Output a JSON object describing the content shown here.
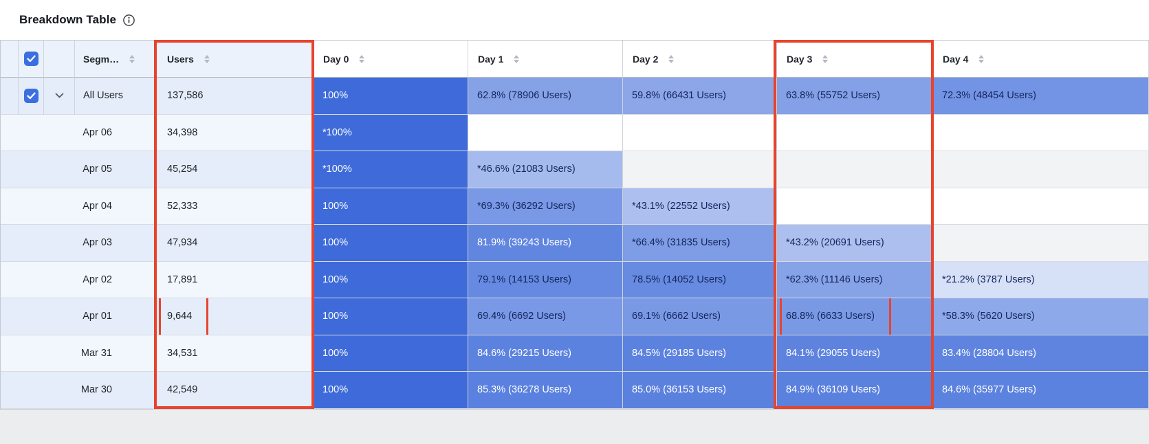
{
  "page": {
    "title": "Breakdown Table"
  },
  "colors": {
    "accent_blue": "#3E6BD9",
    "highlight_red": "#E8432D",
    "cell_text_dark": "#14265C",
    "cell_text_light": "#FFFFFF",
    "row_band_dark": "#E4EDF9",
    "row_band_light": "#F2F7FD",
    "header_band": "#ECF2FB",
    "empty_stripe": "#F2F3F5",
    "checkbox_blue": "#3B6FE0"
  },
  "table": {
    "segment_column": {
      "label": "Segm…",
      "sortable": true
    },
    "users_column": {
      "label": "Users",
      "sortable": true,
      "highlighted": true
    },
    "day_columns": [
      {
        "label": "Day 0",
        "sortable": true
      },
      {
        "label": "Day 1",
        "sortable": true
      },
      {
        "label": "Day 2",
        "sortable": true
      },
      {
        "label": "Day 3",
        "sortable": true,
        "highlighted": true
      },
      {
        "label": "Day 4",
        "sortable": true
      }
    ],
    "select_all_checked": true,
    "rows": [
      {
        "type": "segment",
        "segment": "All Users",
        "selected": true,
        "expandable": true,
        "users": "137,586",
        "cells": [
          {
            "label": "100%",
            "pct": 100
          },
          {
            "label": "62.8% (78906 Users)",
            "pct": 62.8
          },
          {
            "label": "59.8% (66431 Users)",
            "pct": 59.8
          },
          {
            "label": "63.8% (55752 Users)",
            "pct": 63.8
          },
          {
            "label": "72.3% (48454 Users)",
            "pct": 72.3
          }
        ]
      },
      {
        "type": "date",
        "segment": "Apr 06",
        "users": "34,398",
        "cells": [
          {
            "label": "*100%",
            "pct": 100
          },
          null,
          null,
          null,
          null
        ]
      },
      {
        "type": "date",
        "segment": "Apr 05",
        "users": "45,254",
        "cells": [
          {
            "label": "*100%",
            "pct": 100
          },
          {
            "label": "*46.6% (21083 Users)",
            "pct": 46.6
          },
          null,
          null,
          null
        ]
      },
      {
        "type": "date",
        "segment": "Apr 04",
        "users": "52,333",
        "cells": [
          {
            "label": "100%",
            "pct": 100
          },
          {
            "label": "*69.3% (36292 Users)",
            "pct": 69.3
          },
          {
            "label": "*43.1% (22552 Users)",
            "pct": 43.1
          },
          null,
          null
        ]
      },
      {
        "type": "date",
        "segment": "Apr 03",
        "users": "47,934",
        "cells": [
          {
            "label": "100%",
            "pct": 100
          },
          {
            "label": "81.9% (39243 Users)",
            "pct": 81.9
          },
          {
            "label": "*66.4% (31835 Users)",
            "pct": 66.4
          },
          {
            "label": "*43.2% (20691 Users)",
            "pct": 43.2
          },
          null
        ]
      },
      {
        "type": "date",
        "segment": "Apr 02",
        "users": "17,891",
        "cells": [
          {
            "label": "100%",
            "pct": 100
          },
          {
            "label": "79.1% (14153 Users)",
            "pct": 79.1
          },
          {
            "label": "78.5% (14052 Users)",
            "pct": 78.5
          },
          {
            "label": "*62.3% (11146 Users)",
            "pct": 62.3
          },
          {
            "label": "*21.2% (3787 Users)",
            "pct": 21.2
          }
        ]
      },
      {
        "type": "date",
        "segment": "Apr 01",
        "users": "9,644",
        "users_highlighted": true,
        "cells": [
          {
            "label": "100%",
            "pct": 100
          },
          {
            "label": "69.4% (6692 Users)",
            "pct": 69.4
          },
          {
            "label": "69.1% (6662 Users)",
            "pct": 69.1
          },
          {
            "label": "68.8% (6633 Users)",
            "pct": 68.8,
            "highlighted": true
          },
          {
            "label": "*58.3% (5620 Users)",
            "pct": 58.3
          }
        ]
      },
      {
        "type": "date",
        "segment": "Mar 31",
        "users": "34,531",
        "cells": [
          {
            "label": "100%",
            "pct": 100
          },
          {
            "label": "84.6% (29215 Users)",
            "pct": 84.6
          },
          {
            "label": "84.5% (29185 Users)",
            "pct": 84.5
          },
          {
            "label": "84.1% (29055 Users)",
            "pct": 84.1
          },
          {
            "label": "83.4% (28804 Users)",
            "pct": 83.4
          }
        ]
      },
      {
        "type": "date",
        "segment": "Mar 30",
        "users": "42,549",
        "cells": [
          {
            "label": "100%",
            "pct": 100
          },
          {
            "label": "85.3% (36278 Users)",
            "pct": 85.3
          },
          {
            "label": "85.0% (36153 Users)",
            "pct": 85.0
          },
          {
            "label": "84.9% (36109 Users)",
            "pct": 84.9
          },
          {
            "label": "84.6% (35977 Users)",
            "pct": 84.6
          }
        ]
      }
    ]
  }
}
